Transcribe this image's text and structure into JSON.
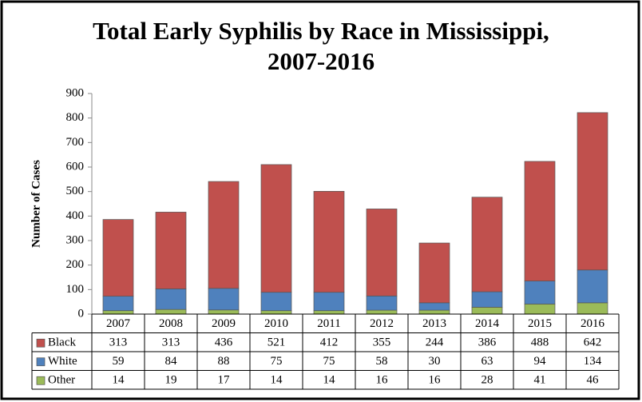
{
  "chart_data": {
    "type": "stacked_bar",
    "title": "Total Early Syphilis by Race in Mississippi, 2007-2016",
    "ylabel": "Number of Cases",
    "categories": [
      "2007",
      "2008",
      "2009",
      "2010",
      "2011",
      "2012",
      "2013",
      "2014",
      "2015",
      "2016"
    ],
    "series": [
      {
        "name": "Black",
        "color": "#c0504d",
        "values": [
          313,
          313,
          436,
          521,
          412,
          355,
          244,
          386,
          488,
          642
        ]
      },
      {
        "name": "White",
        "color": "#4f81bd",
        "values": [
          59,
          84,
          88,
          75,
          75,
          58,
          30,
          63,
          94,
          134
        ]
      },
      {
        "name": "Other",
        "color": "#9bbb59",
        "values": [
          14,
          19,
          17,
          14,
          14,
          16,
          16,
          28,
          41,
          46
        ]
      }
    ],
    "ylim": [
      0,
      900
    ],
    "yticks": [
      0,
      100,
      200,
      300,
      400,
      500,
      600,
      700,
      800,
      900
    ],
    "grid": false
  }
}
